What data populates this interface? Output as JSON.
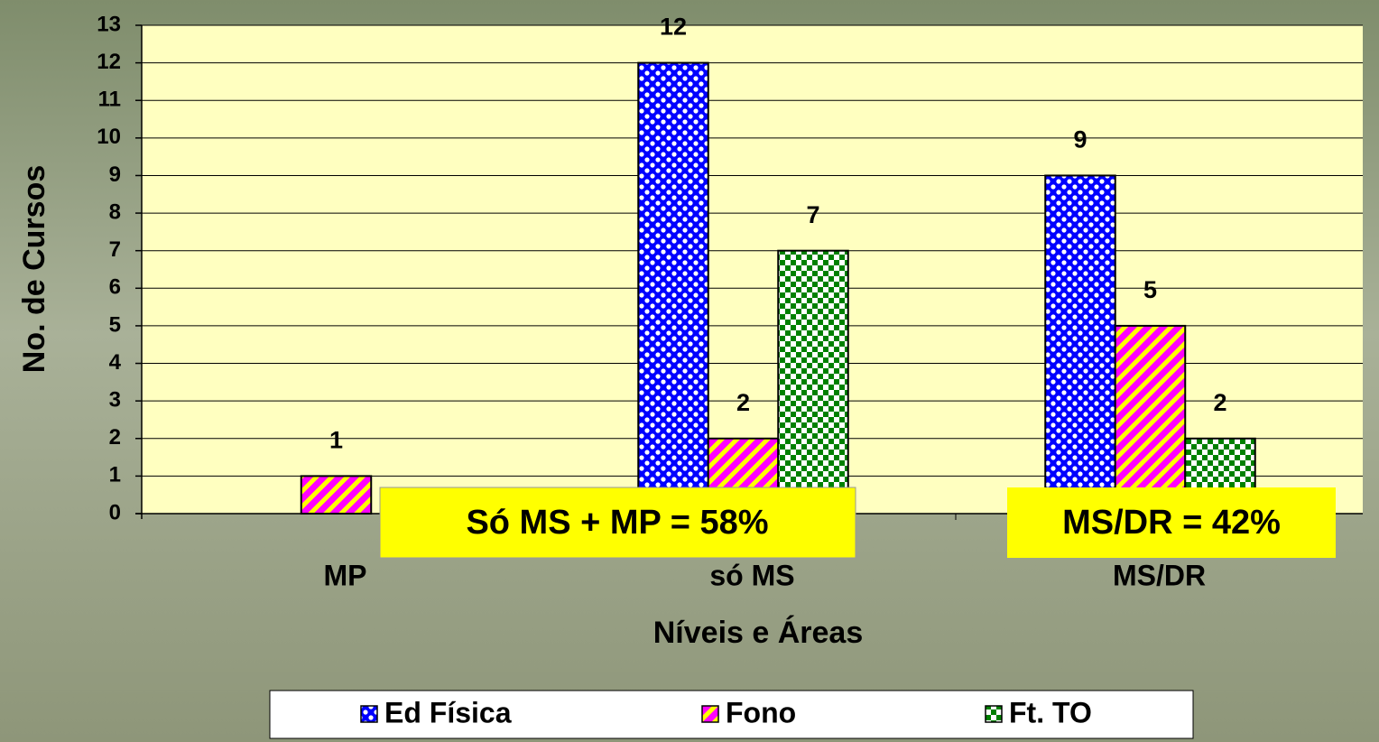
{
  "chart_data": {
    "type": "bar",
    "categories": [
      "MP",
      "só MS",
      "MS/DR"
    ],
    "series": [
      {
        "name": "Ed Física",
        "color": "#0000ff",
        "pattern": "dots",
        "values": [
          null,
          12,
          9
        ]
      },
      {
        "name": "Fono",
        "color": "#ff00ff",
        "pattern": "stripes",
        "values": [
          1,
          2,
          5
        ]
      },
      {
        "name": "Ft. TO",
        "color": "#008000",
        "pattern": "checker",
        "values": [
          null,
          7,
          2
        ]
      }
    ],
    "xlabel": "Níveis e Áreas",
    "ylabel": "No. de Cursos",
    "ylim": [
      0,
      13
    ],
    "yticks": [
      0,
      1,
      2,
      3,
      4,
      5,
      6,
      7,
      8,
      9,
      10,
      11,
      12,
      13
    ],
    "grid": true,
    "legend": "bottom",
    "annotations": [
      "Só MS + MP = 58%",
      "MS/DR = 42%"
    ]
  }
}
